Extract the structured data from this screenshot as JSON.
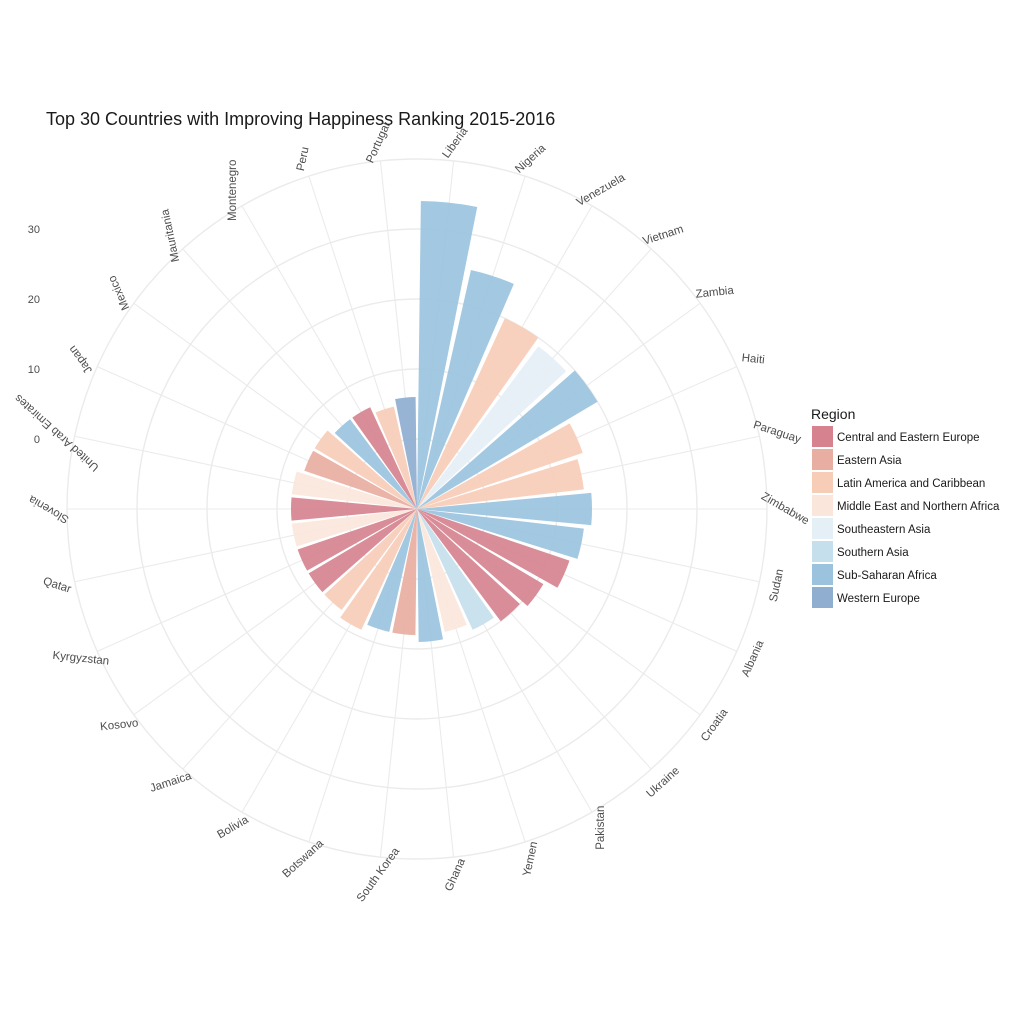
{
  "chart_data": {
    "type": "bar",
    "coord": "polar",
    "title": "Top 30 Countries with Improving Happiness Ranking 2015-2016",
    "xlabel": "",
    "ylabel": "",
    "ylim": [
      -10,
      40
    ],
    "yticks": [
      0,
      10,
      20,
      30
    ],
    "grid": true,
    "legend_placement": "right",
    "legend_title": "Region",
    "legend": [
      {
        "name": "Central and Eastern Europe",
        "color": "#d6838f"
      },
      {
        "name": "Eastern Asia",
        "color": "#e8aea2"
      },
      {
        "name": "Latin America and Caribbean",
        "color": "#f7cdb8"
      },
      {
        "name": "Middle East and Northern Africa",
        "color": "#fbe6db"
      },
      {
        "name": "Southeastern Asia",
        "color": "#e5eff6"
      },
      {
        "name": "Southern Asia",
        "color": "#c5dfec"
      },
      {
        "name": "Sub-Saharan Africa",
        "color": "#9bc3de"
      },
      {
        "name": "Western Europe",
        "color": "#8faed0"
      }
    ],
    "categories": [
      "Liberia",
      "Nigeria",
      "Venezuela",
      "Vietnam",
      "Zambia",
      "Haiti",
      "Paraguay",
      "Zimbabwe",
      "Sudan",
      "Albania",
      "Croatia",
      "Ukraine",
      "Pakistan",
      "Yemen",
      "Ghana",
      "South Korea",
      "Botswana",
      "Bolivia",
      "Jamaica",
      "Kosovo",
      "Kyrgyzstan",
      "Qatar",
      "Slovenia",
      "United Arab Emirates",
      "Japan",
      "Mexico",
      "Mauritania",
      "Montenegro",
      "Peru",
      "Portugal"
    ],
    "values": [
      34,
      25,
      20,
      19,
      20,
      15,
      14,
      15,
      14,
      13,
      11,
      10,
      9,
      8,
      9,
      8,
      8,
      9,
      8,
      8,
      8,
      8,
      8,
      8,
      7,
      7,
      6,
      6,
      5,
      6
    ],
    "regions": [
      "Sub-Saharan Africa",
      "Sub-Saharan Africa",
      "Latin America and Caribbean",
      "Southeastern Asia",
      "Sub-Saharan Africa",
      "Latin America and Caribbean",
      "Latin America and Caribbean",
      "Sub-Saharan Africa",
      "Sub-Saharan Africa",
      "Central and Eastern Europe",
      "Central and Eastern Europe",
      "Central and Eastern Europe",
      "Southern Asia",
      "Middle East and Northern Africa",
      "Sub-Saharan Africa",
      "Eastern Asia",
      "Sub-Saharan Africa",
      "Latin America and Caribbean",
      "Latin America and Caribbean",
      "Central and Eastern Europe",
      "Central and Eastern Europe",
      "Middle East and Northern Africa",
      "Central and Eastern Europe",
      "Middle East and Northern Africa",
      "Eastern Asia",
      "Latin America and Caribbean",
      "Sub-Saharan Africa",
      "Central and Eastern Europe",
      "Latin America and Caribbean",
      "Western Europe"
    ]
  }
}
